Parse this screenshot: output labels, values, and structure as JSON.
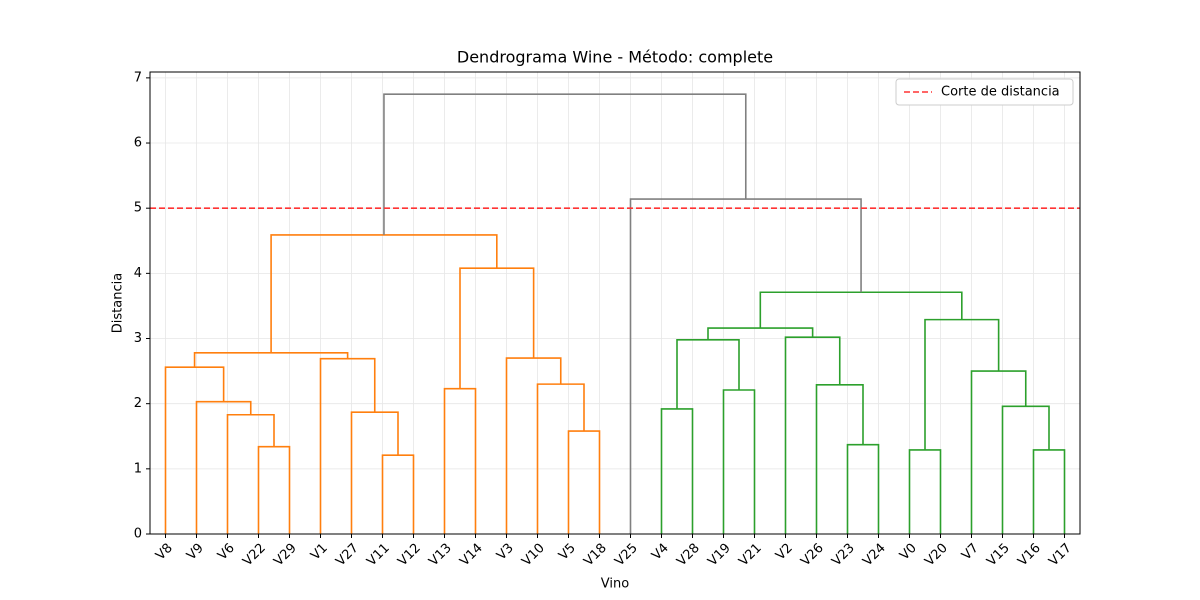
{
  "chart_data": {
    "type": "dendrogram",
    "title": "Dendrograma Wine - Método: complete",
    "x_label": "Vino",
    "y_label": "Distancia",
    "categories": [
      "V8",
      "V9",
      "V6",
      "V22",
      "V29",
      "V1",
      "V27",
      "V11",
      "V12",
      "V13",
      "V14",
      "V3",
      "V10",
      "V5",
      "V18",
      "V25",
      "V4",
      "V28",
      "V19",
      "V21",
      "V2",
      "V26",
      "V23",
      "V24",
      "V0",
      "V20",
      "V7",
      "V15",
      "V16",
      "V17"
    ],
    "merges": [
      {
        "children": [
          3,
          4
        ],
        "height": 1.34,
        "color": "#ff7f0e"
      },
      {
        "children": [
          2,
          30
        ],
        "height": 1.83,
        "color": "#ff7f0e"
      },
      {
        "children": [
          1,
          31
        ],
        "height": 2.03,
        "color": "#ff7f0e"
      },
      {
        "children": [
          0,
          32
        ],
        "height": 2.56,
        "color": "#ff7f0e"
      },
      {
        "children": [
          7,
          8
        ],
        "height": 1.21,
        "color": "#ff7f0e"
      },
      {
        "children": [
          6,
          34
        ],
        "height": 1.87,
        "color": "#ff7f0e"
      },
      {
        "children": [
          5,
          35
        ],
        "height": 2.69,
        "color": "#ff7f0e"
      },
      {
        "children": [
          33,
          36
        ],
        "height": 2.78,
        "color": "#ff7f0e"
      },
      {
        "children": [
          9,
          10
        ],
        "height": 2.23,
        "color": "#ff7f0e"
      },
      {
        "children": [
          13,
          14
        ],
        "height": 1.58,
        "color": "#ff7f0e"
      },
      {
        "children": [
          12,
          39
        ],
        "height": 2.3,
        "color": "#ff7f0e"
      },
      {
        "children": [
          11,
          40
        ],
        "height": 2.7,
        "color": "#ff7f0e"
      },
      {
        "children": [
          38,
          41
        ],
        "height": 4.08,
        "color": "#ff7f0e"
      },
      {
        "children": [
          37,
          42
        ],
        "height": 4.59,
        "color": "#ff7f0e"
      },
      {
        "children": [
          16,
          17
        ],
        "height": 1.92,
        "color": "#2ca02c"
      },
      {
        "children": [
          18,
          19
        ],
        "height": 2.21,
        "color": "#2ca02c"
      },
      {
        "children": [
          44,
          45
        ],
        "height": 2.98,
        "color": "#2ca02c"
      },
      {
        "children": [
          22,
          23
        ],
        "height": 1.37,
        "color": "#2ca02c"
      },
      {
        "children": [
          21,
          47
        ],
        "height": 2.29,
        "color": "#2ca02c"
      },
      {
        "children": [
          20,
          48
        ],
        "height": 3.02,
        "color": "#2ca02c"
      },
      {
        "children": [
          46,
          49
        ],
        "height": 3.16,
        "color": "#2ca02c"
      },
      {
        "children": [
          24,
          25
        ],
        "height": 1.29,
        "color": "#2ca02c"
      },
      {
        "children": [
          28,
          29
        ],
        "height": 1.29,
        "color": "#2ca02c"
      },
      {
        "children": [
          27,
          52
        ],
        "height": 1.96,
        "color": "#2ca02c"
      },
      {
        "children": [
          26,
          53
        ],
        "height": 2.5,
        "color": "#2ca02c"
      },
      {
        "children": [
          51,
          54
        ],
        "height": 3.29,
        "color": "#2ca02c"
      },
      {
        "children": [
          50,
          55
        ],
        "height": 3.71,
        "color": "#2ca02c"
      },
      {
        "children": [
          15,
          56
        ],
        "height": 5.14,
        "color": "#808080"
      },
      {
        "children": [
          43,
          57
        ],
        "height": 6.75,
        "color": "#808080"
      }
    ],
    "threshold": {
      "value": 5,
      "label": "Corte de distancia",
      "color": "#ff3333"
    },
    "ylim": [
      0,
      7.09
    ],
    "yticks": [
      0,
      1,
      2,
      3,
      4,
      5,
      6,
      7
    ],
    "grid": true,
    "legend_position": "upper right"
  }
}
